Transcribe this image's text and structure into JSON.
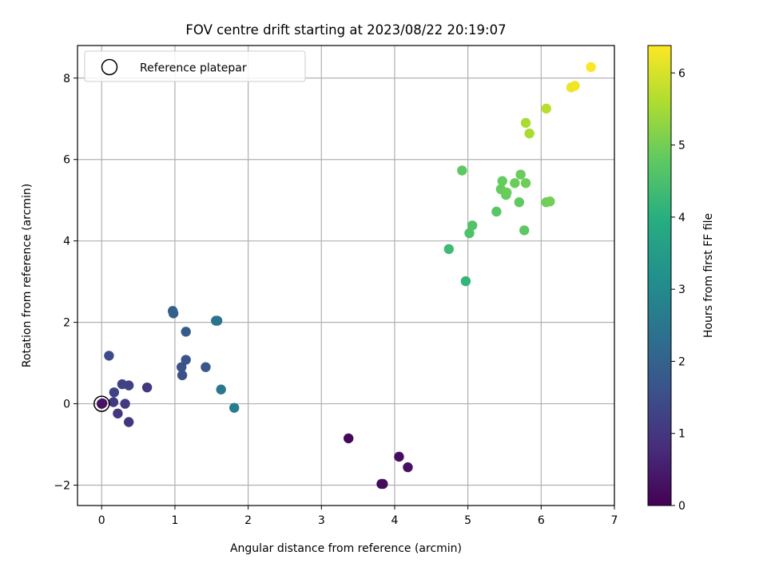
{
  "chart_data": {
    "type": "scatter",
    "title": "FOV centre drift starting at 2023/08/22 20:19:07",
    "xlabel": "Angular distance from reference (arcmin)",
    "ylabel": "Rotation from reference (arcmin)",
    "xlim": [
      -0.33,
      7.0
    ],
    "ylim": [
      -2.5,
      8.8
    ],
    "xticks": [
      0,
      1,
      2,
      3,
      4,
      5,
      6,
      7
    ],
    "yticks": [
      -2,
      0,
      2,
      4,
      6,
      8
    ],
    "xtick_labels": [
      "0",
      "1",
      "2",
      "3",
      "4",
      "5",
      "6",
      "7"
    ],
    "ytick_labels": [
      "−2",
      "0",
      "2",
      "4",
      "6",
      "8"
    ],
    "grid": true,
    "colormap": "viridis",
    "colorbar": {
      "label": "Hours from first FF file",
      "range": [
        0,
        6.38
      ],
      "ticks": [
        0,
        1,
        2,
        3,
        4,
        5,
        6
      ],
      "tick_labels": [
        "0",
        "1",
        "2",
        "3",
        "4",
        "5",
        "6"
      ]
    },
    "legend": {
      "position": "upper-left",
      "entries": [
        {
          "label": "Reference platepar",
          "marker": "open-circle"
        }
      ]
    },
    "reference_point": {
      "x": 0,
      "y": 0
    },
    "points": [
      {
        "x": 0.0,
        "y": 0.0,
        "hours": 0.0
      },
      {
        "x": 3.37,
        "y": -0.85,
        "hours": 0.1
      },
      {
        "x": 3.82,
        "y": -1.97,
        "hours": 0.15
      },
      {
        "x": 3.84,
        "y": -1.97,
        "hours": 0.18
      },
      {
        "x": 4.06,
        "y": -1.3,
        "hours": 0.22
      },
      {
        "x": 4.18,
        "y": -1.56,
        "hours": 0.3
      },
      {
        "x": 0.01,
        "y": 0.01,
        "hours": 0.35
      },
      {
        "x": 0.37,
        "y": -0.45,
        "hours": 0.95
      },
      {
        "x": 0.22,
        "y": -0.24,
        "hours": 1.0
      },
      {
        "x": 0.16,
        "y": 0.04,
        "hours": 1.05
      },
      {
        "x": 0.32,
        "y": 0.0,
        "hours": 1.1
      },
      {
        "x": 0.62,
        "y": 0.4,
        "hours": 1.0
      },
      {
        "x": 0.37,
        "y": 0.45,
        "hours": 1.2
      },
      {
        "x": 0.28,
        "y": 0.48,
        "hours": 1.25
      },
      {
        "x": 0.17,
        "y": 0.28,
        "hours": 1.3
      },
      {
        "x": 0.1,
        "y": 1.18,
        "hours": 1.45
      },
      {
        "x": 1.1,
        "y": 0.7,
        "hours": 1.55
      },
      {
        "x": 1.09,
        "y": 0.9,
        "hours": 1.6
      },
      {
        "x": 1.15,
        "y": 1.08,
        "hours": 1.65
      },
      {
        "x": 1.42,
        "y": 0.9,
        "hours": 1.75
      },
      {
        "x": 1.15,
        "y": 1.77,
        "hours": 1.85
      },
      {
        "x": 0.97,
        "y": 2.28,
        "hours": 1.9
      },
      {
        "x": 0.98,
        "y": 2.22,
        "hours": 1.95
      },
      {
        "x": 1.56,
        "y": 2.04,
        "hours": 2.35
      },
      {
        "x": 1.58,
        "y": 2.04,
        "hours": 2.45
      },
      {
        "x": 1.63,
        "y": 0.35,
        "hours": 2.55
      },
      {
        "x": 1.81,
        "y": -0.1,
        "hours": 2.65
      },
      {
        "x": 4.97,
        "y": 3.01,
        "hours": 4.15
      },
      {
        "x": 4.74,
        "y": 3.8,
        "hours": 4.35
      },
      {
        "x": 5.02,
        "y": 4.19,
        "hours": 4.55
      },
      {
        "x": 5.06,
        "y": 4.38,
        "hours": 4.6
      },
      {
        "x": 5.39,
        "y": 4.72,
        "hours": 4.7
      },
      {
        "x": 5.77,
        "y": 4.26,
        "hours": 4.75
      },
      {
        "x": 4.92,
        "y": 5.73,
        "hours": 4.8
      },
      {
        "x": 5.7,
        "y": 4.95,
        "hours": 4.8
      },
      {
        "x": 5.47,
        "y": 5.47,
        "hours": 4.85
      },
      {
        "x": 5.45,
        "y": 5.27,
        "hours": 4.85
      },
      {
        "x": 5.52,
        "y": 5.13,
        "hours": 4.85
      },
      {
        "x": 5.53,
        "y": 5.19,
        "hours": 4.9
      },
      {
        "x": 5.64,
        "y": 5.42,
        "hours": 4.9
      },
      {
        "x": 5.72,
        "y": 5.63,
        "hours": 4.9
      },
      {
        "x": 5.79,
        "y": 5.42,
        "hours": 4.95
      },
      {
        "x": 6.07,
        "y": 4.95,
        "hours": 4.95
      },
      {
        "x": 6.12,
        "y": 4.97,
        "hours": 5.0
      },
      {
        "x": 5.79,
        "y": 6.9,
        "hours": 5.55
      },
      {
        "x": 5.84,
        "y": 6.64,
        "hours": 5.55
      },
      {
        "x": 6.07,
        "y": 7.25,
        "hours": 5.7
      },
      {
        "x": 6.41,
        "y": 7.77,
        "hours": 6.2
      },
      {
        "x": 6.46,
        "y": 7.81,
        "hours": 6.25
      },
      {
        "x": 6.68,
        "y": 8.27,
        "hours": 6.35
      }
    ]
  }
}
